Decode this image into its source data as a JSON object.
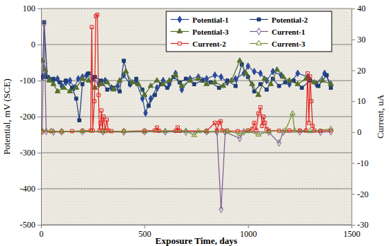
{
  "chart_data": {
    "type": "line",
    "x_label": "Exposure Time, days",
    "y_label": "Potential, mV (SCE)",
    "y2_label": "Current, uA",
    "xlim": [
      0,
      1500
    ],
    "xticks": [
      0,
      500,
      1000,
      1500
    ],
    "ylim": [
      -500,
      100
    ],
    "yticks": [
      -500,
      -400,
      -300,
      -200,
      -100,
      0,
      100
    ],
    "y2lim": [
      -30,
      40
    ],
    "y2ticks": [
      -30,
      -20,
      -10,
      0,
      10,
      20,
      30,
      40
    ],
    "grid": true,
    "legend": "upper right",
    "series": [
      {
        "name": "Potential-1",
        "color": "#2B4A9B",
        "marker": "diamond",
        "x": [
          7,
          20,
          40,
          60,
          80,
          100,
          120,
          140,
          160,
          180,
          200,
          220,
          250,
          280,
          310,
          340,
          370,
          400,
          430,
          460,
          490,
          505,
          530,
          560,
          590,
          620,
          650,
          680,
          720,
          760,
          800,
          840,
          870,
          900,
          940,
          980,
          1000,
          1030,
          1060,
          1090,
          1120,
          1160,
          1200,
          1240,
          1290,
          1330,
          1370,
          1400
        ],
        "values": [
          -90,
          -85,
          -95,
          -100,
          -95,
          -115,
          -105,
          -100,
          -120,
          -95,
          -90,
          -85,
          -95,
          -110,
          -100,
          -120,
          -115,
          -85,
          -110,
          -105,
          -150,
          -190,
          -150,
          -120,
          -100,
          -110,
          -80,
          -125,
          -95,
          -90,
          -95,
          -85,
          -90,
          -105,
          -95,
          -80,
          -60,
          -75,
          -80,
          -100,
          -75,
          -85,
          -110,
          -80,
          -90,
          -110,
          -80,
          -110
        ]
      },
      {
        "name": "Potential-2",
        "color": "#1F3C74",
        "marker": "square",
        "x": [
          7,
          15,
          30,
          60,
          90,
          120,
          150,
          170,
          185,
          200,
          230,
          260,
          290,
          320,
          350,
          380,
          400,
          430,
          460,
          490,
          520,
          550,
          580,
          610,
          640,
          670,
          700,
          740,
          780,
          820,
          860,
          900,
          940,
          970,
          1000,
          1030,
          1060,
          1090,
          1120,
          1150,
          1180,
          1220,
          1260,
          1300,
          1340,
          1380,
          1400
        ],
        "values": [
          -90,
          62,
          -90,
          -95,
          -105,
          -100,
          -120,
          -150,
          -210,
          -110,
          -80,
          -90,
          -100,
          -125,
          -120,
          -130,
          -45,
          -110,
          -95,
          -125,
          -170,
          -140,
          -110,
          -120,
          -90,
          -105,
          -95,
          -110,
          -100,
          -105,
          -120,
          -100,
          -115,
          -55,
          -90,
          -130,
          -110,
          -125,
          -95,
          -115,
          -105,
          -100,
          -120,
          -100,
          -115,
          -85,
          -120
        ]
      },
      {
        "name": "Potential-3",
        "color": "#55702A",
        "marker": "triangle",
        "x": [
          7,
          20,
          40,
          60,
          80,
          110,
          140,
          170,
          200,
          230,
          260,
          290,
          320,
          350,
          380,
          410,
          440,
          470,
          500,
          530,
          560,
          590,
          620,
          650,
          680,
          720,
          760,
          800,
          840,
          880,
          920,
          960,
          990,
          1020,
          1050,
          1080,
          1110,
          1140,
          1170,
          1200,
          1240,
          1280,
          1320,
          1360,
          1400
        ],
        "values": [
          -45,
          -70,
          -100,
          -110,
          -130,
          -120,
          -130,
          -120,
          -95,
          -100,
          -120,
          -110,
          -105,
          -125,
          -100,
          -75,
          -105,
          -110,
          -140,
          -115,
          -100,
          -110,
          -100,
          -85,
          -115,
          -100,
          -95,
          -110,
          -105,
          -115,
          -100,
          -45,
          -80,
          -110,
          -140,
          -95,
          -110,
          -70,
          -90,
          -100,
          -110,
          -95,
          -105,
          -100,
          -110
        ]
      },
      {
        "name": "Current-1",
        "color": "#7B5A8C",
        "marker": "diamond-open",
        "axis": "y2",
        "x": [
          5,
          15,
          25,
          60,
          100,
          200,
          300,
          400,
          500,
          600,
          700,
          800,
          850,
          870,
          890,
          960,
          980,
          1100,
          1150,
          1170,
          1250,
          1350,
          1400
        ],
        "values": [
          0.2,
          35,
          0.2,
          0,
          0.1,
          0.1,
          0.1,
          0,
          0.1,
          0.1,
          0,
          0.1,
          0,
          -25,
          0,
          -2,
          0.1,
          0,
          -3.5,
          0,
          0.1,
          0,
          0.1
        ]
      },
      {
        "name": "Current-2",
        "color": "#E0201B",
        "marker": "square-open",
        "axis": "y2",
        "x": [
          5,
          50,
          100,
          150,
          200,
          240,
          245,
          250,
          258,
          265,
          272,
          278,
          282,
          288,
          292,
          296,
          302,
          310,
          318,
          325,
          340,
          400,
          500,
          550,
          560,
          570,
          650,
          660,
          670,
          800,
          840,
          850,
          860,
          868,
          875,
          900,
          950,
          1000,
          1020,
          1030,
          1040,
          1050,
          1060,
          1068,
          1075,
          1082,
          1090,
          1100,
          1150,
          1200,
          1250,
          1280,
          1288,
          1294,
          1300,
          1306,
          1312,
          1320,
          1350,
          1400
        ],
        "values": [
          0.2,
          0.3,
          0.2,
          0.3,
          0.4,
          0.5,
          34,
          0.5,
          10,
          37.5,
          38,
          12,
          0.5,
          3,
          7,
          0.5,
          5,
          0.5,
          4,
          0.5,
          0.3,
          0.3,
          0.4,
          0.5,
          1.5,
          0.4,
          0.4,
          1.5,
          0.4,
          0.4,
          3,
          0.5,
          3,
          3.5,
          0.5,
          0.4,
          0.3,
          0.5,
          1,
          3,
          0.5,
          6,
          8,
          2,
          5,
          3,
          1,
          0.5,
          0.4,
          0.5,
          0.5,
          0.5,
          19,
          3,
          18,
          10,
          2,
          0.5,
          0.4,
          0.5
        ]
      },
      {
        "name": "Current-3",
        "color": "#6E8F2C",
        "marker": "triangle-open",
        "axis": "y2",
        "x": [
          5,
          50,
          100,
          200,
          300,
          400,
          500,
          600,
          700,
          740,
          760,
          800,
          900,
          960,
          1000,
          1050,
          1100,
          1180,
          1215,
          1225,
          1300,
          1400
        ],
        "values": [
          0.5,
          0.3,
          0.2,
          0.3,
          0.2,
          0.3,
          0.2,
          0.3,
          0.4,
          -1,
          0.3,
          0.2,
          0.3,
          -0.5,
          0.3,
          -0.8,
          0.2,
          0.5,
          6,
          0.5,
          0.3,
          1
        ]
      }
    ]
  }
}
